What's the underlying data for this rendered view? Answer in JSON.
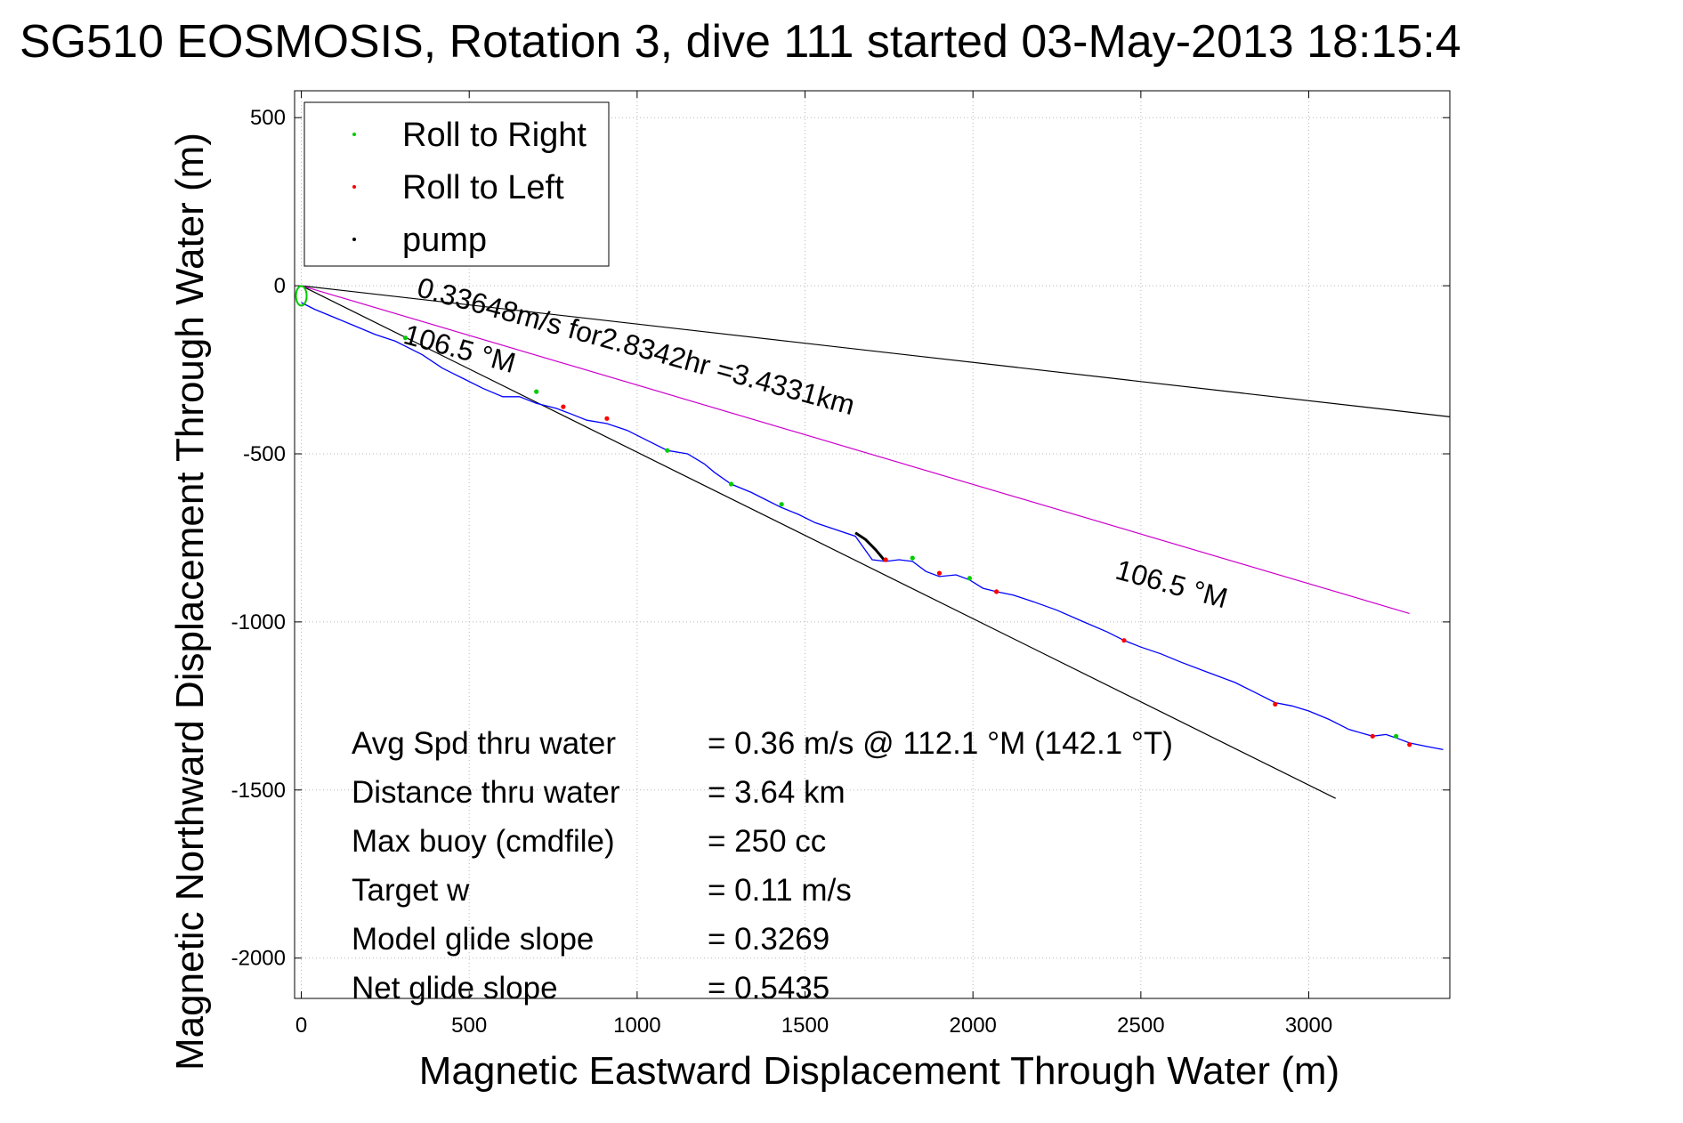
{
  "chart_data": {
    "type": "line",
    "title": "SG510 EOSMOSIS, Rotation 3, dive 111 started 03-May-2013 18:15:4",
    "xlabel": "Magnetic Eastward Displacement Through Water (m)",
    "ylabel": "Magnetic Northward Displacement Through Water (m)",
    "xlim": [
      -20,
      3420
    ],
    "ylim": [
      -2120,
      580
    ],
    "xticks": [
      0,
      500,
      1000,
      1500,
      2000,
      2500,
      3000
    ],
    "yticks": [
      500,
      0,
      -500,
      -1000,
      -1500,
      -2000
    ],
    "xtick_labels": [
      "0",
      "500",
      "1000",
      "1500",
      "2000",
      "2500",
      "3000"
    ],
    "ytick_labels": [
      "500",
      "0",
      "-500",
      "-1000",
      "-1500",
      "-2000"
    ],
    "grid": true,
    "legend": {
      "placement": "top-left",
      "entries": [
        {
          "label": "Roll to Right",
          "color": "#00cc00"
        },
        {
          "label": "Roll to Left",
          "color": "#ff0000"
        },
        {
          "label": "pump",
          "color": "#000000"
        }
      ]
    },
    "track": {
      "color": "#0000ff",
      "x": [
        0,
        40,
        100,
        160,
        220,
        280,
        310,
        360,
        420,
        480,
        540,
        600,
        650,
        700,
        760,
        800,
        850,
        910,
        970,
        1030,
        1090,
        1150,
        1200,
        1230,
        1280,
        1340,
        1380,
        1430,
        1480,
        1530,
        1590,
        1650,
        1700,
        1740,
        1780,
        1820,
        1860,
        1900,
        1950,
        1990,
        2030,
        2070,
        2120,
        2180,
        2250,
        2330,
        2400,
        2450,
        2500,
        2560,
        2620,
        2700,
        2780,
        2840,
        2900,
        2950,
        3000,
        3060,
        3120,
        3190,
        3230,
        3260,
        3300,
        3350,
        3400
      ],
      "y": [
        -50,
        -70,
        -95,
        -120,
        -145,
        -165,
        -180,
        -205,
        -245,
        -275,
        -305,
        -330,
        -330,
        -350,
        -365,
        -380,
        -400,
        -410,
        -430,
        -460,
        -490,
        -500,
        -530,
        -555,
        -590,
        -615,
        -635,
        -660,
        -680,
        -705,
        -725,
        -745,
        -815,
        -820,
        -815,
        -820,
        -850,
        -865,
        -860,
        -875,
        -900,
        -910,
        -920,
        -940,
        -965,
        -1000,
        -1030,
        -1055,
        -1075,
        -1095,
        -1120,
        -1150,
        -1180,
        -1210,
        -1240,
        -1250,
        -1265,
        -1290,
        -1320,
        -1340,
        -1335,
        -1345,
        -1360,
        -1370,
        -1380
      ]
    },
    "roll_right_points": {
      "color": "#00cc00",
      "x": [
        310,
        700,
        1090,
        1280,
        1430,
        1820,
        1990,
        3260
      ],
      "y": [
        -155,
        -315,
        -490,
        -590,
        -650,
        -810,
        -870,
        -1340
      ]
    },
    "roll_left_points": {
      "color": "#ff0000",
      "x": [
        780,
        910,
        1740,
        1900,
        2070,
        2450,
        2900,
        3190,
        3300
      ],
      "y": [
        -360,
        -395,
        -815,
        -855,
        -910,
        -1055,
        -1245,
        -1340,
        -1365
      ]
    },
    "pump_segment": {
      "color": "#000000",
      "x": [
        1650,
        1680,
        1710,
        1735
      ],
      "y": [
        -735,
        -755,
        -785,
        -815
      ]
    },
    "start_marker": {
      "x": 0,
      "y": -30,
      "color": "#00cc00"
    },
    "reference_lines": [
      {
        "name": "heading-line-steep",
        "color": "#000000",
        "x": [
          0,
          3080
        ],
        "y": [
          0,
          -1525
        ]
      },
      {
        "name": "heading-line-shallow",
        "color": "#000000",
        "x": [
          0,
          3420
        ],
        "y": [
          0,
          -390
        ]
      },
      {
        "name": "heading-line-magenta",
        "color": "#cc00cc",
        "x": [
          0,
          3300
        ],
        "y": [
          0,
          -975
        ]
      }
    ],
    "annotations": [
      {
        "text": "0.33648m/s for2.8342hr =3.4331km",
        "x": 340,
        "y": -30,
        "rotate": 15.3
      },
      {
        "text": "106.5 °M",
        "x": 300,
        "y": -170,
        "rotate": 15.3
      },
      {
        "text": "106.5 °M",
        "x": 2420,
        "y": -870,
        "rotate": 15.3
      }
    ],
    "stats": [
      {
        "label": "Avg Spd thru water",
        "value": "=  0.36 m/s @ 112.1 °M (142.1 °T)"
      },
      {
        "label": "Distance thru water",
        "value": "=  3.64 km"
      },
      {
        "label": "Max buoy (cmdfile)",
        "value": "= 250 cc"
      },
      {
        "label": "Target w",
        "value": "= 0.11 m/s"
      },
      {
        "label": "Model glide slope",
        "value": "= 0.3269"
      },
      {
        "label": "Net glide slope",
        "value": "= 0.5435"
      }
    ]
  }
}
